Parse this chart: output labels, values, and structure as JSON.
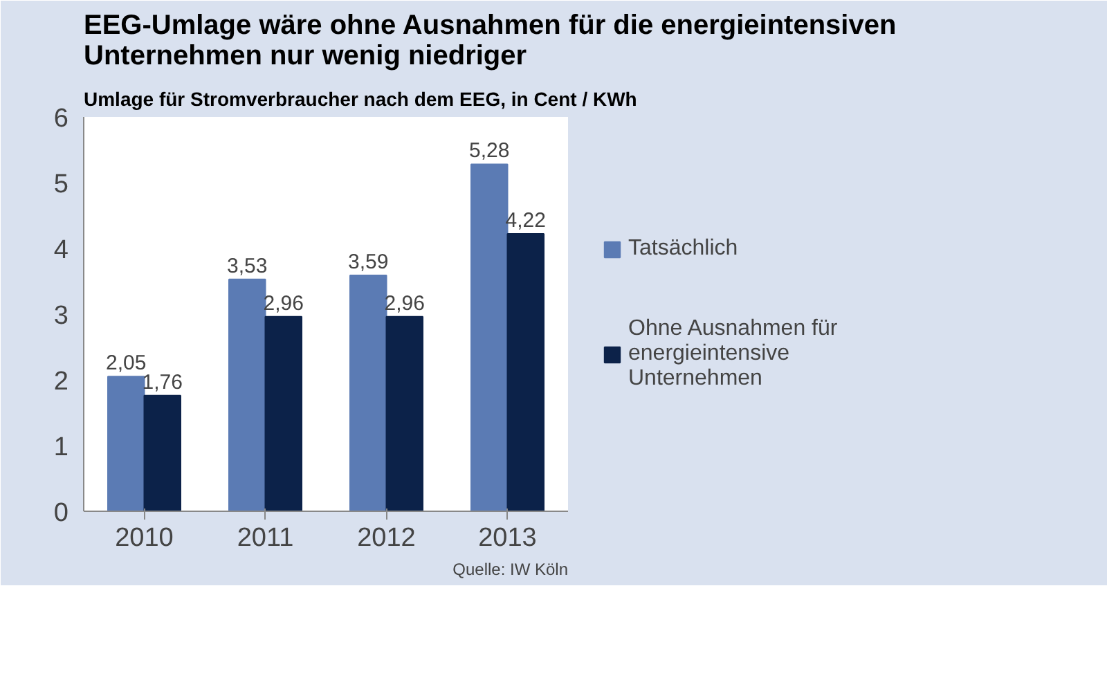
{
  "chart_data": {
    "type": "bar",
    "title": "EEG-Umlage wäre ohne Ausnahmen für die energieintensiven Unternehmen nur wenig niedriger",
    "subtitle": "Umlage für Stromverbraucher nach dem EEG, in Cent / KWh",
    "categories": [
      "2010",
      "2011",
      "2012",
      "2013"
    ],
    "series": [
      {
        "name": "Tatsächlich",
        "color": "#5b7bb4",
        "values": [
          2.05,
          3.53,
          3.59,
          5.28
        ],
        "value_labels": [
          "2,05",
          "3,53",
          "3,59",
          "5,28"
        ]
      },
      {
        "name": "Ohne Ausnahmen für energieintensive Unternehmen",
        "color": "#0c2249",
        "values": [
          1.76,
          2.96,
          2.96,
          4.22
        ],
        "value_labels": [
          "1,76",
          "2,96",
          "2,96",
          "4,22"
        ]
      }
    ],
    "ylim": [
      0,
      6
    ],
    "yticks": [
      0,
      1,
      2,
      3,
      4,
      5,
      6
    ],
    "grid": false,
    "legend": "right",
    "annotations": [
      "Quelle: IW Köln"
    ]
  }
}
